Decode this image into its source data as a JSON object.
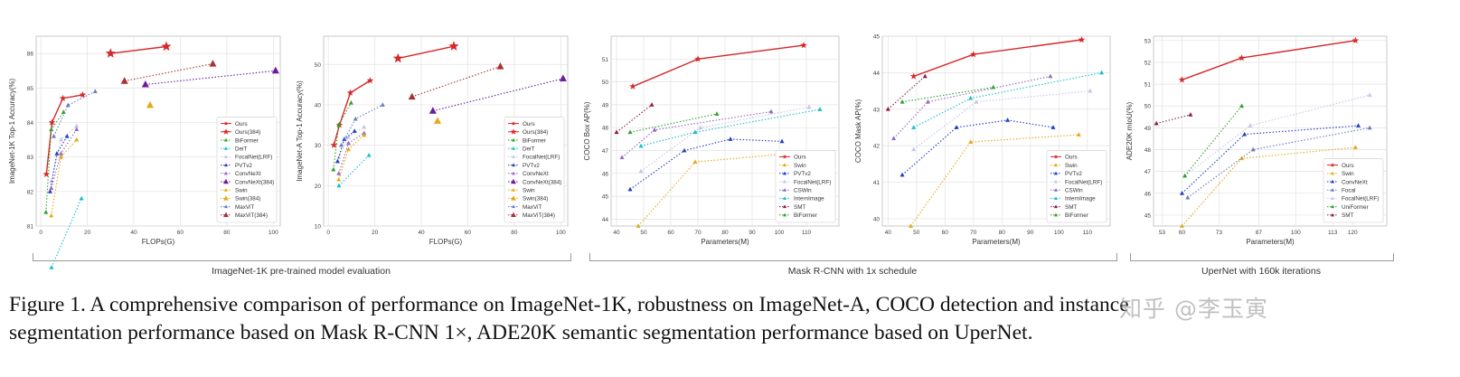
{
  "colors": {
    "ours": "#d62728",
    "biformer": "#2ca02c",
    "deit": "#17becf",
    "focal": "#c5c5ea",
    "pvt": "#1f3fbf",
    "convnext": "#9467bd",
    "swin": "#e6a817",
    "maxvit": "#6a7bbf",
    "maxvit384": "#a83232"
  },
  "groups": [
    {
      "label": "ImageNet-1K pre-trained model evaluation"
    },
    {
      "label": "Mask R-CNN with 1x schedule"
    },
    {
      "label": "UperNet with 160k iterations"
    }
  ],
  "caption": {
    "line1": "Figure 1.  A comprehensive comparison of performance on ImageNet-1K, robustness on ImageNet-A, COCO detection and instance",
    "line2": "segmentation performance based on Mask R-CNN 1×, ADE20K semantic segmentation performance based on UperNet."
  },
  "watermark": "知乎 @李玉寅",
  "chart_data": [
    {
      "type": "line",
      "xlabel": "FLOPs(G)",
      "ylabel": "ImageNet-1K Top-1 Accuracy(%)",
      "xlim": [
        -2,
        103
      ],
      "ylim": [
        81,
        86.5
      ],
      "xticks": [
        0,
        20,
        40,
        60,
        80,
        100
      ],
      "yticks": [
        81,
        82,
        83,
        84,
        85,
        86
      ],
      "legend_position": "lower-right",
      "series": [
        {
          "name": "Ours",
          "color": "#d62728",
          "marker": "star",
          "x": [
            2.4,
            4.8,
            9.5,
            18
          ],
          "y": [
            82.5,
            84.0,
            84.7,
            84.8
          ]
        },
        {
          "name": "Ours(384)",
          "color": "#d62728",
          "marker": "bigstar",
          "x": [
            30,
            54
          ],
          "y": [
            86.0,
            86.2
          ]
        },
        {
          "name": "BiFormer",
          "color": "#2ca02c",
          "marker": "tri",
          "x": [
            2.2,
            4.5,
            9.8
          ],
          "y": [
            81.4,
            83.8,
            84.3
          ]
        },
        {
          "name": "DeiT",
          "color": "#17becf",
          "marker": "tri",
          "x": [
            4.6,
            17.5
          ],
          "y": [
            79.8,
            81.8
          ]
        },
        {
          "name": "FocalNet(LRF)",
          "color": "#c5c5ea",
          "marker": "tri",
          "x": [
            4.5,
            8.7,
            15.4
          ],
          "y": [
            82.3,
            83.5,
            83.9
          ]
        },
        {
          "name": "PVTv2",
          "color": "#1f3fbf",
          "marker": "tri",
          "x": [
            4.0,
            6.9,
            11.3
          ],
          "y": [
            82.0,
            83.1,
            83.6
          ]
        },
        {
          "name": "ConvNeXt",
          "color": "#9467bd",
          "marker": "tri",
          "x": [
            4.5,
            8.7,
            15.4
          ],
          "y": [
            82.1,
            83.1,
            83.8
          ]
        },
        {
          "name": "ConvNeXt(384)",
          "color": "#6a1b9a",
          "marker": "bigtri",
          "x": [
            45,
            101
          ],
          "y": [
            85.1,
            85.5
          ]
        },
        {
          "name": "Swin",
          "color": "#e6a817",
          "marker": "tri",
          "x": [
            4.5,
            8.7,
            15.4
          ],
          "y": [
            81.3,
            83.0,
            83.5
          ]
        },
        {
          "name": "Swin(384)",
          "color": "#e6a817",
          "marker": "bigtri",
          "x": [
            47
          ],
          "y": [
            84.5
          ]
        },
        {
          "name": "MaxViT",
          "color": "#6a7bbf",
          "marker": "tri",
          "x": [
            5.6,
            11.7,
            23.4
          ],
          "y": [
            83.6,
            84.5,
            84.9
          ]
        },
        {
          "name": "MaxViT(384)",
          "color": "#a83232",
          "marker": "bigtri",
          "x": [
            36,
            74
          ],
          "y": [
            85.2,
            85.7
          ]
        }
      ]
    },
    {
      "type": "line",
      "xlabel": "FLOPs(G)",
      "ylabel": "ImageNet-A Top-1 Accuracy(%)",
      "xlim": [
        -2,
        103
      ],
      "ylim": [
        10,
        57
      ],
      "xticks": [
        0,
        20,
        40,
        60,
        80,
        100
      ],
      "yticks": [
        10,
        20,
        30,
        40,
        50
      ],
      "legend_position": "lower-right",
      "series": [
        {
          "name": "Ours",
          "color": "#d62728",
          "marker": "star",
          "x": [
            2.4,
            4.8,
            9.5,
            18
          ],
          "y": [
            30.0,
            35.0,
            43.0,
            46.0
          ]
        },
        {
          "name": "Ours(384)",
          "color": "#d62728",
          "marker": "bigstar",
          "x": [
            30,
            54
          ],
          "y": [
            51.5,
            54.5
          ]
        },
        {
          "name": "BiFormer",
          "color": "#2ca02c",
          "marker": "tri",
          "x": [
            2.2,
            4.5,
            9.8
          ],
          "y": [
            24.0,
            35.0,
            40.5
          ]
        },
        {
          "name": "DeiT",
          "color": "#17becf",
          "marker": "tri",
          "x": [
            4.6,
            17.5
          ],
          "y": [
            20.0,
            27.5
          ]
        },
        {
          "name": "FocalNet(LRF)",
          "color": "#c5c5ea",
          "marker": "tri",
          "x": [
            4.5,
            8.7,
            15.4
          ],
          "y": [
            27.0,
            32.0,
            34.5
          ]
        },
        {
          "name": "PVTv2",
          "color": "#1f3fbf",
          "marker": "tri",
          "x": [
            4.0,
            6.9,
            11.3
          ],
          "y": [
            26.0,
            31.5,
            33.5
          ]
        },
        {
          "name": "ConvNeXt",
          "color": "#9467bd",
          "marker": "tri",
          "x": [
            4.5,
            8.7,
            15.4
          ],
          "y": [
            23.0,
            30.5,
            33.0
          ]
        },
        {
          "name": "ConvNeXt(384)",
          "color": "#6a1b9a",
          "marker": "bigtri",
          "x": [
            45,
            101
          ],
          "y": [
            38.5,
            46.5
          ]
        },
        {
          "name": "Swin",
          "color": "#e6a817",
          "marker": "tri",
          "x": [
            4.5,
            8.7,
            15.4
          ],
          "y": [
            21.5,
            29.0,
            32.5
          ]
        },
        {
          "name": "Swin(384)",
          "color": "#e6a817",
          "marker": "bigtri",
          "x": [
            47
          ],
          "y": [
            36.0
          ]
        },
        {
          "name": "MaxViT",
          "color": "#6a7bbf",
          "marker": "tri",
          "x": [
            5.6,
            11.7,
            23.4
          ],
          "y": [
            30.0,
            36.5,
            40.0
          ]
        },
        {
          "name": "MaxViT(384)",
          "color": "#a83232",
          "marker": "bigtri",
          "x": [
            36,
            74
          ],
          "y": [
            42.0,
            49.5
          ]
        }
      ]
    },
    {
      "type": "line",
      "xlabel": "Parameters(M)",
      "ylabel": "COCO Box AP(%)",
      "xlim": [
        38,
        122
      ],
      "ylim": [
        43.7,
        52.0
      ],
      "xticks": [
        40,
        50,
        60,
        70,
        80,
        90,
        100,
        110
      ],
      "yticks": [
        44,
        45,
        46,
        47,
        48,
        49,
        50,
        51
      ],
      "legend_position": "lower-right",
      "series": [
        {
          "name": "Ours",
          "color": "#d62728",
          "marker": "star",
          "x": [
            46,
            70,
            109
          ],
          "y": [
            49.8,
            51.0,
            51.6
          ]
        },
        {
          "name": "Swin",
          "color": "#e6a817",
          "marker": "tri",
          "x": [
            48,
            69,
            107
          ],
          "y": [
            43.7,
            46.5,
            46.9
          ]
        },
        {
          "name": "PVTv2",
          "color": "#1f3fbf",
          "marker": "tri",
          "x": [
            45,
            65,
            82,
            101
          ],
          "y": [
            45.3,
            47.0,
            47.5,
            47.4
          ]
        },
        {
          "name": "FocalNet(LRF)",
          "color": "#c5c5ea",
          "marker": "tri",
          "x": [
            49,
            71,
            111
          ],
          "y": [
            46.1,
            48.0,
            48.9
          ]
        },
        {
          "name": "CSWin",
          "color": "#9467bd",
          "marker": "tri",
          "x": [
            42,
            54,
            97
          ],
          "y": [
            46.7,
            47.9,
            48.7
          ]
        },
        {
          "name": "InternImage",
          "color": "#17becf",
          "marker": "tri",
          "x": [
            49,
            69,
            115
          ],
          "y": [
            47.2,
            47.8,
            48.8
          ]
        },
        {
          "name": "SMT",
          "color": "#8b1a4a",
          "marker": "tri",
          "x": [
            40,
            53
          ],
          "y": [
            47.8,
            49.0
          ]
        },
        {
          "name": "BiFormer",
          "color": "#2ca02c",
          "marker": "tri",
          "x": [
            45,
            77
          ],
          "y": [
            47.8,
            48.6
          ]
        }
      ]
    },
    {
      "type": "line",
      "xlabel": "Parameters(M)",
      "ylabel": "COCO Mask AP(%)",
      "xlim": [
        38,
        118
      ],
      "ylim": [
        39.8,
        45.0
      ],
      "xticks": [
        40,
        50,
        60,
        70,
        80,
        90,
        100,
        110
      ],
      "yticks": [
        40,
        41,
        42,
        43,
        44,
        45
      ],
      "legend_position": "lower-right",
      "series": [
        {
          "name": "Ours",
          "color": "#d62728",
          "marker": "star",
          "x": [
            49,
            70,
            108
          ],
          "y": [
            43.9,
            44.5,
            44.9
          ]
        },
        {
          "name": "Swin",
          "color": "#e6a817",
          "marker": "tri",
          "x": [
            48,
            69,
            107
          ],
          "y": [
            39.8,
            42.1,
            42.3
          ]
        },
        {
          "name": "PVTv2",
          "color": "#1f3fbf",
          "marker": "tri",
          "x": [
            45,
            64,
            82,
            98
          ],
          "y": [
            41.2,
            42.5,
            42.7,
            42.5
          ]
        },
        {
          "name": "FocalNet(LRF)",
          "color": "#c5c5ea",
          "marker": "tri",
          "x": [
            49,
            71,
            111
          ],
          "y": [
            41.9,
            43.2,
            43.5
          ]
        },
        {
          "name": "CSWin",
          "color": "#9467bd",
          "marker": "tri",
          "x": [
            42,
            54,
            97
          ],
          "y": [
            42.2,
            43.2,
            43.9
          ]
        },
        {
          "name": "InternImage",
          "color": "#17becf",
          "marker": "tri",
          "x": [
            49,
            69,
            115
          ],
          "y": [
            42.5,
            43.3,
            44.0
          ]
        },
        {
          "name": "SMT",
          "color": "#8b1a4a",
          "marker": "tri",
          "x": [
            40,
            53
          ],
          "y": [
            43.0,
            43.9
          ]
        },
        {
          "name": "BiFormer",
          "color": "#2ca02c",
          "marker": "tri",
          "x": [
            45,
            77
          ],
          "y": [
            43.2,
            43.6
          ]
        }
      ]
    },
    {
      "type": "line",
      "xlabel": "Parameters(M)",
      "ylabel": "ADE20K mIoU(%)",
      "xlim": [
        50,
        132
      ],
      "ylim": [
        44.5,
        53.2
      ],
      "xticks": [
        53,
        60,
        73,
        87,
        100,
        113,
        120
      ],
      "yticks": [
        45,
        46,
        47,
        48,
        49,
        50,
        51,
        52,
        53
      ],
      "legend_position": "lower-right",
      "series": [
        {
          "name": "Ours",
          "color": "#d62728",
          "marker": "star",
          "x": [
            60,
            81,
            121
          ],
          "y": [
            51.2,
            52.2,
            53.0
          ]
        },
        {
          "name": "Swin",
          "color": "#e6a817",
          "marker": "tri",
          "x": [
            60,
            81,
            121
          ],
          "y": [
            44.5,
            47.6,
            48.1
          ]
        },
        {
          "name": "ConvNeXt",
          "color": "#1f3fbf",
          "marker": "tri",
          "x": [
            60,
            82,
            122
          ],
          "y": [
            46.0,
            48.7,
            49.1
          ]
        },
        {
          "name": "Focal",
          "color": "#6a7bbf",
          "marker": "tri",
          "x": [
            62,
            85,
            126
          ],
          "y": [
            45.8,
            48.0,
            49.0
          ]
        },
        {
          "name": "FocalNet(LRF)",
          "color": "#c5c5ea",
          "marker": "tri",
          "x": [
            61,
            84,
            126
          ],
          "y": [
            46.8,
            49.1,
            50.5
          ]
        },
        {
          "name": "UniFormer",
          "color": "#2ca02c",
          "marker": "tri",
          "x": [
            61,
            81
          ],
          "y": [
            46.8,
            50.0
          ]
        },
        {
          "name": "SMT",
          "color": "#8b1a4a",
          "marker": "tri",
          "x": [
            51,
            63
          ],
          "y": [
            49.2,
            49.6
          ]
        }
      ]
    }
  ]
}
